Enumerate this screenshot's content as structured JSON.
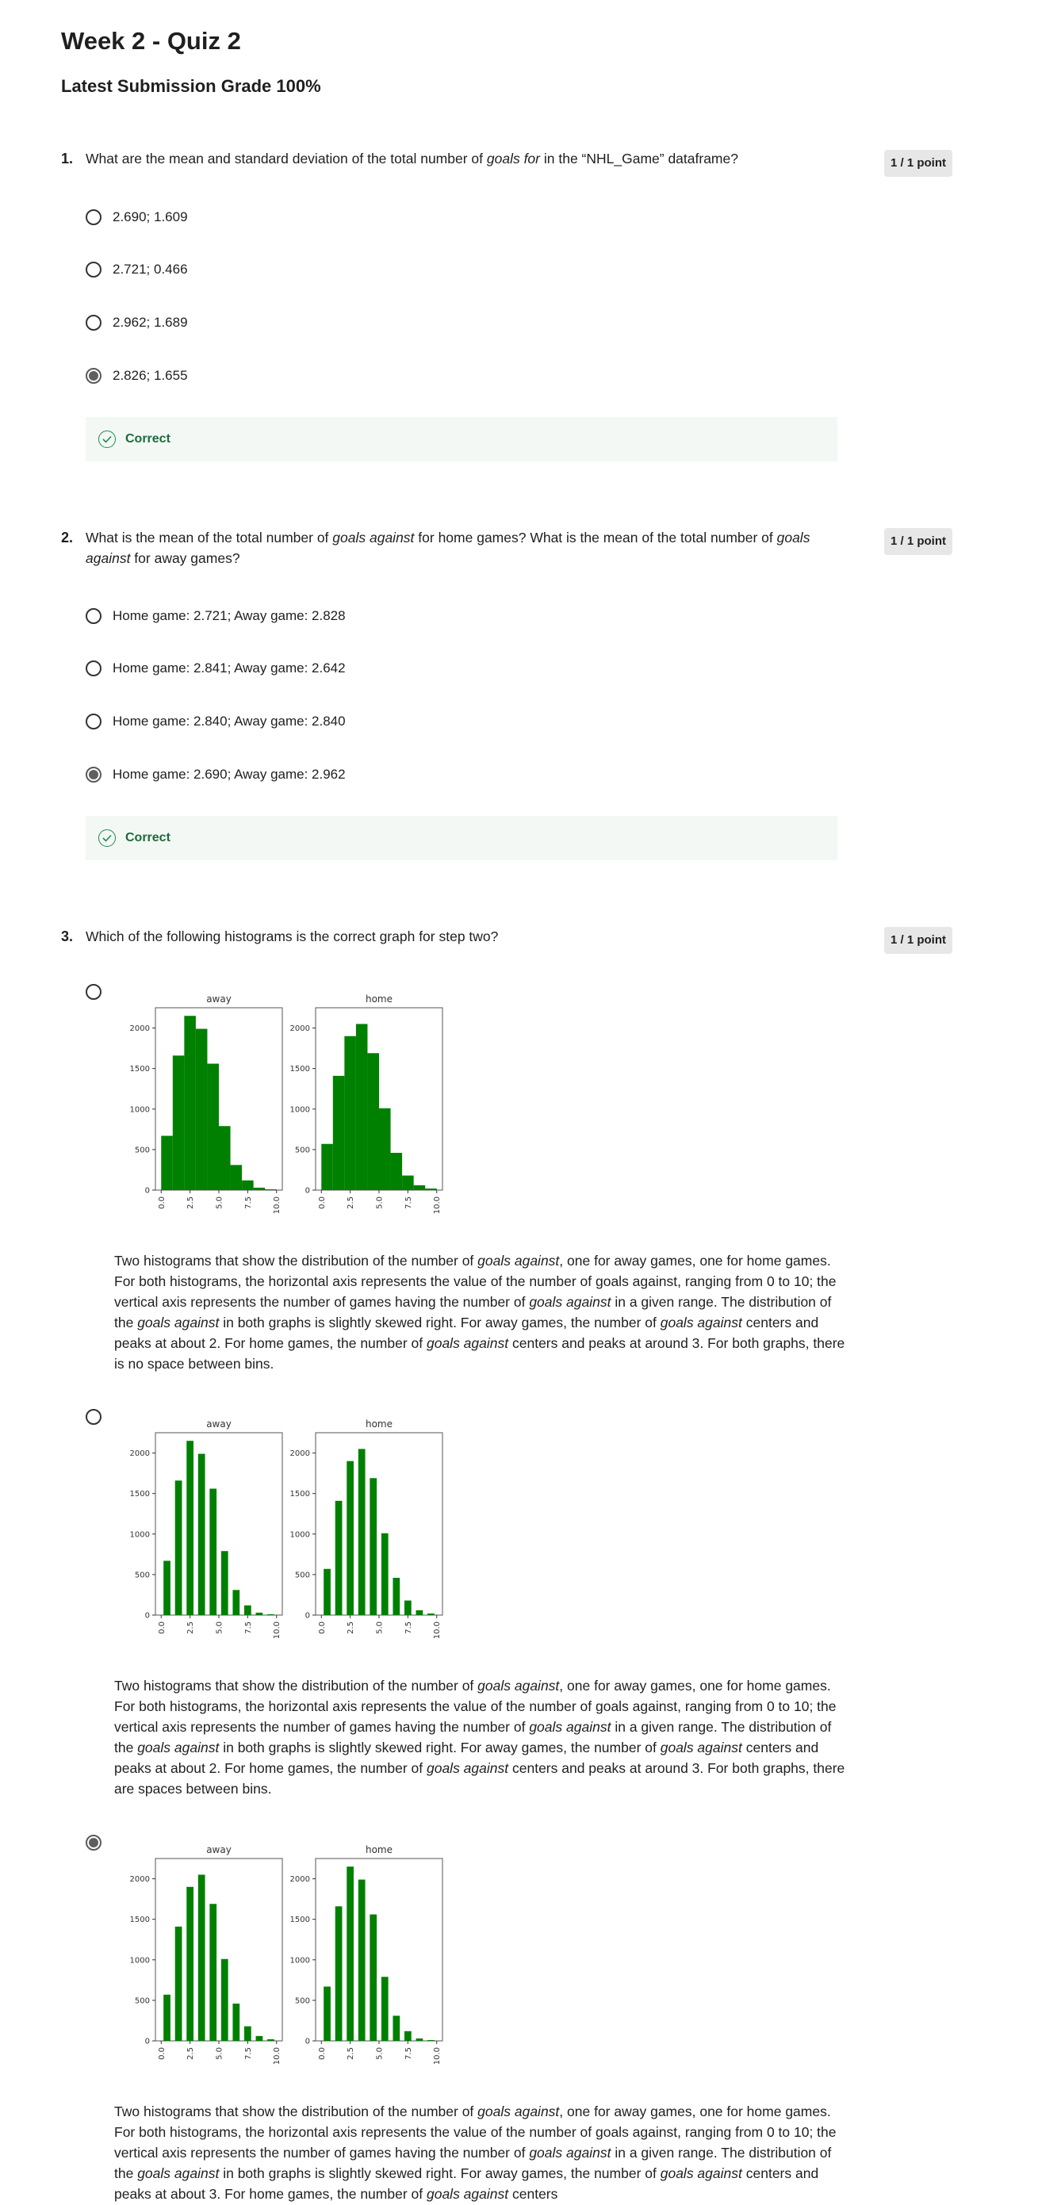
{
  "title": "Week 2 - Quiz 2",
  "grade": "Latest Submission Grade 100%",
  "colors": {
    "bar": "#008000",
    "correct_bg": "#f3f8f5",
    "correct_text": "#1c6b3c",
    "points_bg": "#e7e7e7"
  },
  "questions": [
    {
      "number": "1.",
      "text_parts": [
        "What are the mean and standard deviation of the total number of ",
        "goals for",
        " in the “NHL_Game” dataframe?"
      ],
      "points": "1 / 1 point",
      "options": [
        "2.690; 1.609",
        "2.721; 0.466",
        "2.962; 1.689",
        "2.826; 1.655"
      ],
      "selected": 3,
      "feedback": "Correct"
    },
    {
      "number": "2.",
      "text_parts": [
        "What is the mean of the total number of ",
        "goals against",
        " for home games? What is the mean of the total number of ",
        "goals against",
        " for away games?"
      ],
      "points": "1 / 1 point",
      "options": [
        "Home game: 2.721; Away game: 2.828",
        "Home game: 2.841; Away game: 2.642",
        "Home game: 2.840; Away game: 2.840",
        "Home game: 2.690; Away game: 2.962"
      ],
      "selected": 3,
      "feedback": "Correct"
    },
    {
      "number": "3.",
      "text": "Which of the following histograms is the correct graph for step two?",
      "points": "1 / 1 point",
      "selected": 2,
      "options": [
        {
          "desc_parts": [
            "Two histograms that show the distribution of the number of ",
            "goals against",
            ", one for away games, one for home games. For both histograms, the horizontal axis represents the value of the number of goals against, ranging from 0 to 10; the vertical axis represents the number of games having the number of ",
            "goals against",
            " in a given range. The distribution of the ",
            "goals against",
            " in both graphs is slightly skewed right. For away games, the number of ",
            "goals against",
            " centers and peaks at about 2. For home games, the number of ",
            "goals against",
            " centers and peaks at around 3. For both graphs, there is no space between bins."
          ]
        },
        {
          "desc_parts": [
            "Two histograms that show the distribution of the number of ",
            "goals against",
            ", one for away games, one for home games. For both histograms, the horizontal axis represents the value of the number of goals against, ranging from 0 to 10; the vertical axis represents the number of games having the number of ",
            "goals against",
            " in a given range. The distribution of the ",
            "goals against",
            " in both graphs is slightly skewed right. For away games, the number of ",
            "goals against",
            " centers and peaks at about 2. For home games, the number of ",
            "goals against",
            " centers and peaks at around 3. For both graphs, there are spaces between bins."
          ]
        },
        {
          "desc_parts": [
            "Two histograms that show the distribution of the number of ",
            "goals against",
            ", one for away games, one for home games. For both histograms, the horizontal axis represents the value of the number of goals against, ranging from 0 to 10; the vertical axis represents the number of games having the number of ",
            "goals against",
            " in a given range. The distribution of the ",
            "goals against",
            " in both graphs is slightly skewed right. For away games, the number of ",
            "goals against",
            " centers and peaks at about 3. For home games, the number of ",
            "goals against",
            " centers"
          ]
        }
      ]
    }
  ],
  "chart_data": [
    {
      "type": "bar",
      "option": 1,
      "title": "away",
      "gaps": false,
      "x": [
        0.5,
        1.5,
        2.5,
        3.5,
        4.5,
        5.5,
        6.5,
        7.5,
        8.5,
        9.5
      ],
      "values": [
        670,
        1660,
        2150,
        1990,
        1560,
        790,
        310,
        120,
        30,
        10
      ],
      "xticks": [
        "0.0",
        "2.5",
        "5.0",
        "7.5",
        "10.0"
      ],
      "yticks": [
        "0",
        "500",
        "1000",
        "1500",
        "2000"
      ],
      "ylim": [
        0,
        2250
      ]
    },
    {
      "type": "bar",
      "option": 1,
      "title": "home",
      "gaps": false,
      "x": [
        0.5,
        1.5,
        2.5,
        3.5,
        4.5,
        5.5,
        6.5,
        7.5,
        8.5,
        9.5
      ],
      "values": [
        570,
        1410,
        1900,
        2050,
        1690,
        1010,
        460,
        180,
        60,
        20
      ],
      "xticks": [
        "0.0",
        "2.5",
        "5.0",
        "7.5",
        "10.0"
      ],
      "yticks": [
        "0",
        "500",
        "1000",
        "1500",
        "2000"
      ],
      "ylim": [
        0,
        2250
      ]
    },
    {
      "type": "bar",
      "option": 2,
      "title": "away",
      "gaps": true,
      "x": [
        0.5,
        1.5,
        2.5,
        3.5,
        4.5,
        5.5,
        6.5,
        7.5,
        8.5,
        9.5
      ],
      "values": [
        670,
        1660,
        2150,
        1990,
        1560,
        790,
        310,
        120,
        30,
        10
      ],
      "xticks": [
        "0.0",
        "2.5",
        "5.0",
        "7.5",
        "10.0"
      ],
      "yticks": [
        "0",
        "500",
        "1000",
        "1500",
        "2000"
      ],
      "ylim": [
        0,
        2250
      ]
    },
    {
      "type": "bar",
      "option": 2,
      "title": "home",
      "gaps": true,
      "x": [
        0.5,
        1.5,
        2.5,
        3.5,
        4.5,
        5.5,
        6.5,
        7.5,
        8.5,
        9.5
      ],
      "values": [
        570,
        1410,
        1900,
        2050,
        1690,
        1010,
        460,
        180,
        60,
        20
      ],
      "xticks": [
        "0.0",
        "2.5",
        "5.0",
        "7.5",
        "10.0"
      ],
      "yticks": [
        "0",
        "500",
        "1000",
        "1500",
        "2000"
      ],
      "ylim": [
        0,
        2250
      ]
    },
    {
      "type": "bar",
      "option": 3,
      "title": "away",
      "gaps": true,
      "x": [
        0.5,
        1.5,
        2.5,
        3.5,
        4.5,
        5.5,
        6.5,
        7.5,
        8.5,
        9.5
      ],
      "values": [
        570,
        1410,
        1900,
        2050,
        1690,
        1010,
        460,
        180,
        60,
        20
      ],
      "xticks": [
        "0.0",
        "2.5",
        "5.0",
        "7.5",
        "10.0"
      ],
      "yticks": [
        "0",
        "500",
        "1000",
        "1500",
        "2000"
      ],
      "ylim": [
        0,
        2250
      ]
    },
    {
      "type": "bar",
      "option": 3,
      "title": "home",
      "gaps": true,
      "x": [
        0.5,
        1.5,
        2.5,
        3.5,
        4.5,
        5.5,
        6.5,
        7.5,
        8.5,
        9.5
      ],
      "values": [
        670,
        1660,
        2150,
        1990,
        1560,
        790,
        310,
        120,
        30,
        10
      ],
      "xticks": [
        "0.0",
        "2.5",
        "5.0",
        "7.5",
        "10.0"
      ],
      "yticks": [
        "0",
        "500",
        "1000",
        "1500",
        "2000"
      ],
      "ylim": [
        0,
        2250
      ]
    }
  ]
}
